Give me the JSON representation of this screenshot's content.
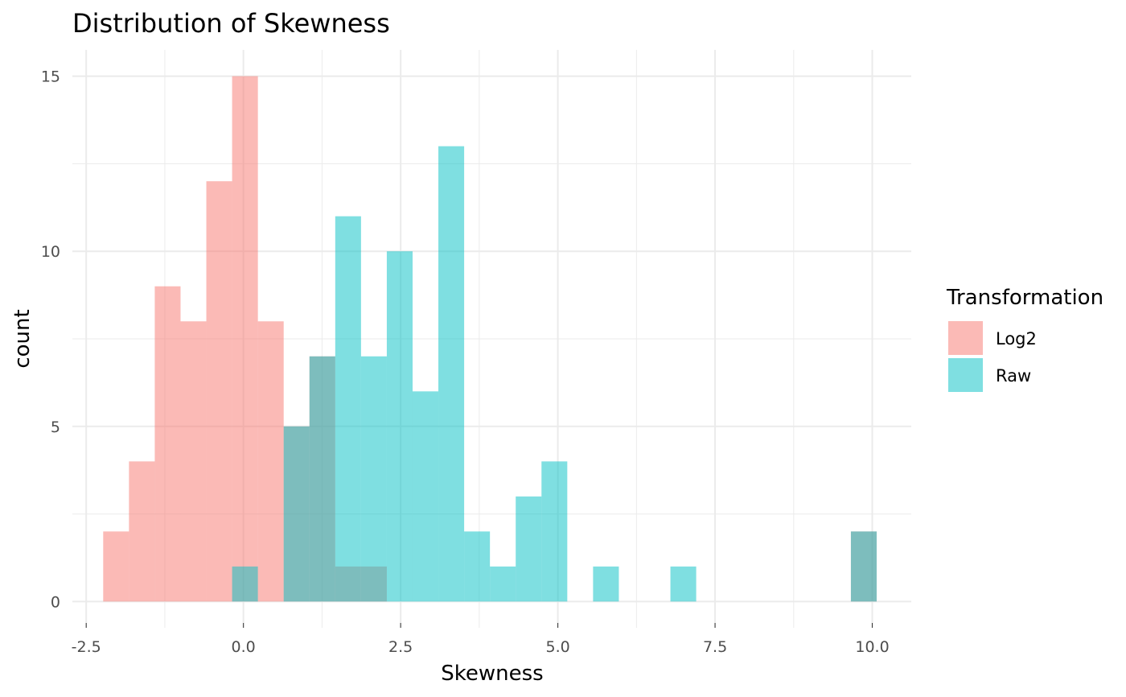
{
  "chart_data": {
    "type": "bar",
    "title": "Distribution of Skewness",
    "xlabel": "Skewness",
    "ylabel": "count",
    "xlim": [
      -2.72,
      10.62
    ],
    "ylim": [
      -0.75,
      15.75
    ],
    "x_ticks": [
      -2.5,
      0.0,
      2.5,
      5.0,
      7.5,
      10.0
    ],
    "x_tick_labels": [
      "-2.5",
      "0.0",
      "2.5",
      "5.0",
      "7.5",
      "10.0"
    ],
    "y_ticks": [
      0,
      5,
      10,
      15
    ],
    "y_tick_labels": [
      "0",
      "5",
      "10",
      "15"
    ],
    "grid": true,
    "bin_width": 0.41,
    "legend": {
      "title": "Transformation",
      "position": "right"
    },
    "series": [
      {
        "name": "Log2",
        "color": "#F8766D",
        "bins": [
          {
            "x0": -2.23,
            "x1": -1.82,
            "count": 2
          },
          {
            "x0": -1.82,
            "x1": -1.41,
            "count": 4
          },
          {
            "x0": -1.41,
            "x1": -1.0,
            "count": 9
          },
          {
            "x0": -1.0,
            "x1": -0.59,
            "count": 8
          },
          {
            "x0": -0.59,
            "x1": -0.18,
            "count": 12
          },
          {
            "x0": -0.18,
            "x1": 0.23,
            "count": 15
          },
          {
            "x0": 0.23,
            "x1": 0.64,
            "count": 8
          },
          {
            "x0": 0.64,
            "x1": 1.05,
            "count": 5
          },
          {
            "x0": 1.05,
            "x1": 1.46,
            "count": 7
          },
          {
            "x0": 1.46,
            "x1": 1.87,
            "count": 1
          },
          {
            "x0": 1.87,
            "x1": 2.28,
            "count": 1
          },
          {
            "x0": 9.66,
            "x1": 10.07,
            "count": 2
          }
        ]
      },
      {
        "name": "Raw",
        "color": "#00BFC4",
        "bins": [
          {
            "x0": -0.18,
            "x1": 0.23,
            "count": 1
          },
          {
            "x0": 0.64,
            "x1": 1.05,
            "count": 5
          },
          {
            "x0": 1.05,
            "x1": 1.46,
            "count": 7
          },
          {
            "x0": 1.46,
            "x1": 1.87,
            "count": 11
          },
          {
            "x0": 1.87,
            "x1": 2.28,
            "count": 7
          },
          {
            "x0": 2.28,
            "x1": 2.69,
            "count": 10
          },
          {
            "x0": 2.69,
            "x1": 3.1,
            "count": 6
          },
          {
            "x0": 3.1,
            "x1": 3.51,
            "count": 13
          },
          {
            "x0": 3.51,
            "x1": 3.92,
            "count": 2
          },
          {
            "x0": 3.92,
            "x1": 4.33,
            "count": 1
          },
          {
            "x0": 4.33,
            "x1": 4.74,
            "count": 3
          },
          {
            "x0": 4.74,
            "x1": 5.15,
            "count": 4
          },
          {
            "x0": 5.56,
            "x1": 5.97,
            "count": 1
          },
          {
            "x0": 6.79,
            "x1": 7.2,
            "count": 1
          },
          {
            "x0": 9.66,
            "x1": 10.07,
            "count": 2
          }
        ]
      }
    ]
  }
}
